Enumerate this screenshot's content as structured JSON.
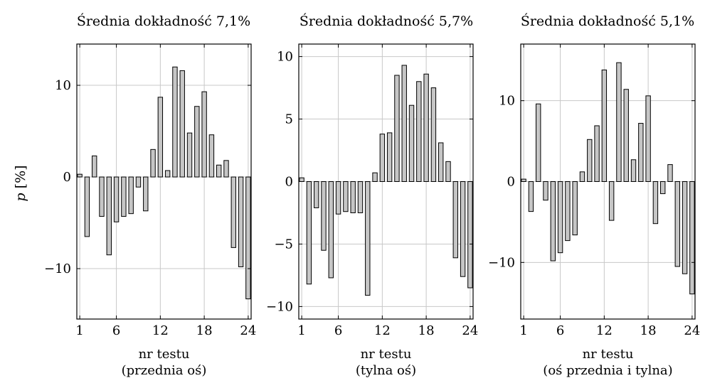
{
  "figure": {
    "ylabel": "p [%]",
    "ylabel_var": "p",
    "ylabel_unit": "[%]"
  },
  "chart_data": [
    {
      "type": "bar",
      "title": "Średnia dokładność 7,1%",
      "xlabel": "nr testu",
      "xlabel2": "(przednia oś)",
      "ylabel": "p [%]",
      "categories": [
        1,
        2,
        3,
        4,
        5,
        6,
        7,
        8,
        9,
        10,
        11,
        12,
        13,
        14,
        15,
        16,
        17,
        18,
        19,
        20,
        21,
        22,
        23,
        24
      ],
      "values": [
        0.3,
        -6.5,
        2.3,
        -4.3,
        -8.5,
        -4.9,
        -4.3,
        -4.0,
        -1.1,
        -3.7,
        3.0,
        8.7,
        0.7,
        12.0,
        11.6,
        4.8,
        7.7,
        9.3,
        4.6,
        1.3,
        1.8,
        -7.7,
        -9.8,
        -13.3
      ],
      "ylim": [
        -15.5,
        14.5
      ],
      "yticks": [
        -10,
        0,
        10
      ],
      "xticks": [
        1,
        6,
        12,
        18,
        24
      ],
      "grid": true
    },
    {
      "type": "bar",
      "title": "Średnia dokładność 5,7%",
      "xlabel": "nr testu",
      "xlabel2": "(tylna oś)",
      "categories": [
        1,
        2,
        3,
        4,
        5,
        6,
        7,
        8,
        9,
        10,
        11,
        12,
        13,
        14,
        15,
        16,
        17,
        18,
        19,
        20,
        21,
        22,
        23,
        24
      ],
      "values": [
        0.3,
        -8.2,
        -2.1,
        -5.5,
        -7.7,
        -2.6,
        -2.4,
        -2.5,
        -2.5,
        -9.1,
        0.7,
        3.8,
        3.9,
        8.5,
        9.3,
        6.1,
        8.0,
        8.6,
        7.5,
        3.1,
        1.6,
        -6.1,
        -7.6,
        -8.5
      ],
      "ylim": [
        -11,
        11
      ],
      "yticks": [
        -10,
        -5,
        0,
        5,
        10
      ],
      "xticks": [
        1,
        6,
        12,
        18,
        24
      ],
      "grid": true
    },
    {
      "type": "bar",
      "title": "Średnia dokładność 5,1%",
      "xlabel": "nr testu",
      "xlabel2": "(oś przednia i tylna)",
      "categories": [
        1,
        2,
        3,
        4,
        5,
        6,
        7,
        8,
        9,
        10,
        11,
        12,
        13,
        14,
        15,
        16,
        17,
        18,
        19,
        20,
        21,
        22,
        23,
        24
      ],
      "values": [
        0.3,
        -3.7,
        9.6,
        -2.3,
        -9.8,
        -8.8,
        -7.3,
        -6.6,
        1.2,
        5.2,
        6.9,
        13.8,
        -4.8,
        14.7,
        11.4,
        2.7,
        7.2,
        10.6,
        -5.2,
        -1.5,
        2.1,
        -10.5,
        -11.4,
        -13.9
      ],
      "ylim": [
        -17,
        17
      ],
      "yticks": [
        -10,
        0,
        10
      ],
      "xticks": [
        1,
        6,
        12,
        18,
        24
      ],
      "grid": true
    }
  ]
}
